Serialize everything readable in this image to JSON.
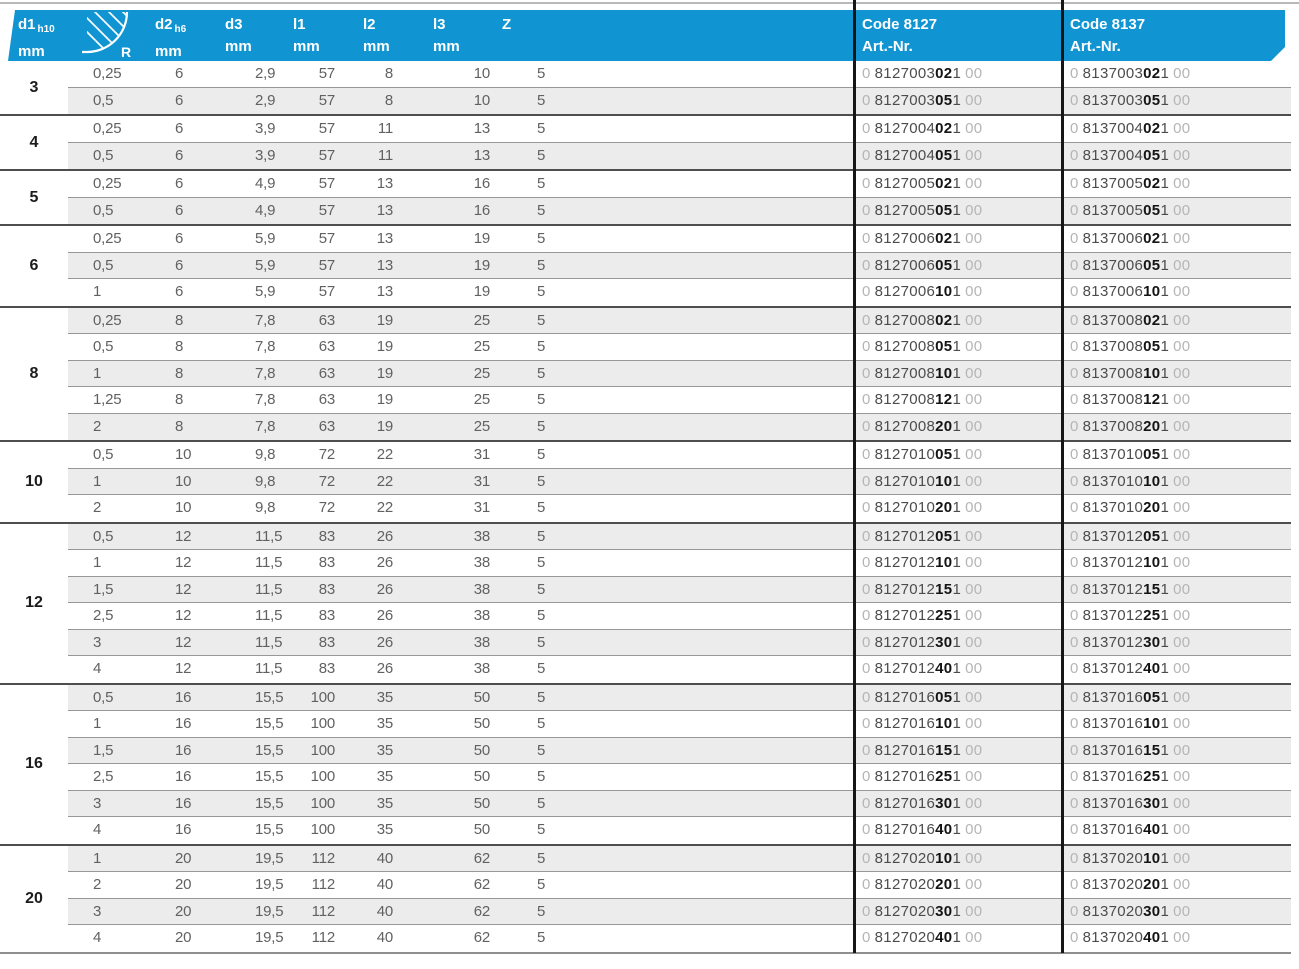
{
  "colors": {
    "header_blue": "#1195d2",
    "stripe_gray": "#ececec",
    "row_separator": "#979797",
    "group_separator": "#4e4e4e",
    "code_rule_black": "#161616",
    "data_text": "#616161",
    "code_light": "#b5b5b5",
    "code_body": "#4c4c4c",
    "code_bold": "#141414"
  },
  "header": {
    "columns": [
      {
        "label": "d1",
        "sub": "h10",
        "unit": "mm"
      },
      {
        "label": "R",
        "icon": "corner-radius-icon"
      },
      {
        "label": "d2",
        "sub": "h6",
        "unit": "mm"
      },
      {
        "label": "d3",
        "unit": "mm"
      },
      {
        "label": "l1",
        "unit": "mm"
      },
      {
        "label": "l2",
        "unit": "mm"
      },
      {
        "label": "l3",
        "unit": "mm"
      },
      {
        "label": "Z"
      }
    ],
    "code_columns": [
      {
        "title": "Code 8127",
        "subtitle": "Art.-Nr."
      },
      {
        "title": "Code 8137",
        "subtitle": "Art.-Nr."
      }
    ]
  },
  "groups": [
    {
      "d1": "3",
      "rows": [
        {
          "r": "0,25",
          "d2": "6",
          "d3": "2,9",
          "l1": "57",
          "l2": "8",
          "l3": "10",
          "z": "5",
          "codes": [
            {
              "lead": "0",
              "body": "8127003",
              "bold": "02",
              "tail": "1",
              "end": "00"
            },
            {
              "lead": "0",
              "body": "8137003",
              "bold": "02",
              "tail": "1",
              "end": "00"
            }
          ]
        },
        {
          "r": "0,5",
          "d2": "6",
          "d3": "2,9",
          "l1": "57",
          "l2": "8",
          "l3": "10",
          "z": "5",
          "codes": [
            {
              "lead": "0",
              "body": "8127003",
              "bold": "05",
              "tail": "1",
              "end": "00"
            },
            {
              "lead": "0",
              "body": "8137003",
              "bold": "05",
              "tail": "1",
              "end": "00"
            }
          ]
        }
      ]
    },
    {
      "d1": "4",
      "rows": [
        {
          "r": "0,25",
          "d2": "6",
          "d3": "3,9",
          "l1": "57",
          "l2": "11",
          "l3": "13",
          "z": "5",
          "codes": [
            {
              "lead": "0",
              "body": "8127004",
              "bold": "02",
              "tail": "1",
              "end": "00"
            },
            {
              "lead": "0",
              "body": "8137004",
              "bold": "02",
              "tail": "1",
              "end": "00"
            }
          ]
        },
        {
          "r": "0,5",
          "d2": "6",
          "d3": "3,9",
          "l1": "57",
          "l2": "11",
          "l3": "13",
          "z": "5",
          "codes": [
            {
              "lead": "0",
              "body": "8127004",
              "bold": "05",
              "tail": "1",
              "end": "00"
            },
            {
              "lead": "0",
              "body": "8137004",
              "bold": "05",
              "tail": "1",
              "end": "00"
            }
          ]
        }
      ]
    },
    {
      "d1": "5",
      "rows": [
        {
          "r": "0,25",
          "d2": "6",
          "d3": "4,9",
          "l1": "57",
          "l2": "13",
          "l3": "16",
          "z": "5",
          "codes": [
            {
              "lead": "0",
              "body": "8127005",
              "bold": "02",
              "tail": "1",
              "end": "00"
            },
            {
              "lead": "0",
              "body": "8137005",
              "bold": "02",
              "tail": "1",
              "end": "00"
            }
          ]
        },
        {
          "r": "0,5",
          "d2": "6",
          "d3": "4,9",
          "l1": "57",
          "l2": "13",
          "l3": "16",
          "z": "5",
          "codes": [
            {
              "lead": "0",
              "body": "8127005",
              "bold": "05",
              "tail": "1",
              "end": "00"
            },
            {
              "lead": "0",
              "body": "8137005",
              "bold": "05",
              "tail": "1",
              "end": "00"
            }
          ]
        }
      ]
    },
    {
      "d1": "6",
      "rows": [
        {
          "r": "0,25",
          "d2": "6",
          "d3": "5,9",
          "l1": "57",
          "l2": "13",
          "l3": "19",
          "z": "5",
          "codes": [
            {
              "lead": "0",
              "body": "8127006",
              "bold": "02",
              "tail": "1",
              "end": "00"
            },
            {
              "lead": "0",
              "body": "8137006",
              "bold": "02",
              "tail": "1",
              "end": "00"
            }
          ]
        },
        {
          "r": "0,5",
          "d2": "6",
          "d3": "5,9",
          "l1": "57",
          "l2": "13",
          "l3": "19",
          "z": "5",
          "codes": [
            {
              "lead": "0",
              "body": "8127006",
              "bold": "05",
              "tail": "1",
              "end": "00"
            },
            {
              "lead": "0",
              "body": "8137006",
              "bold": "05",
              "tail": "1",
              "end": "00"
            }
          ]
        },
        {
          "r": "1",
          "d2": "6",
          "d3": "5,9",
          "l1": "57",
          "l2": "13",
          "l3": "19",
          "z": "5",
          "codes": [
            {
              "lead": "0",
              "body": "8127006",
              "bold": "10",
              "tail": "1",
              "end": "00"
            },
            {
              "lead": "0",
              "body": "8137006",
              "bold": "10",
              "tail": "1",
              "end": "00"
            }
          ]
        }
      ]
    },
    {
      "d1": "8",
      "rows": [
        {
          "r": "0,25",
          "d2": "8",
          "d3": "7,8",
          "l1": "63",
          "l2": "19",
          "l3": "25",
          "z": "5",
          "codes": [
            {
              "lead": "0",
              "body": "8127008",
              "bold": "02",
              "tail": "1",
              "end": "00"
            },
            {
              "lead": "0",
              "body": "8137008",
              "bold": "02",
              "tail": "1",
              "end": "00"
            }
          ]
        },
        {
          "r": "0,5",
          "d2": "8",
          "d3": "7,8",
          "l1": "63",
          "l2": "19",
          "l3": "25",
          "z": "5",
          "codes": [
            {
              "lead": "0",
              "body": "8127008",
              "bold": "05",
              "tail": "1",
              "end": "00"
            },
            {
              "lead": "0",
              "body": "8137008",
              "bold": "05",
              "tail": "1",
              "end": "00"
            }
          ]
        },
        {
          "r": "1",
          "d2": "8",
          "d3": "7,8",
          "l1": "63",
          "l2": "19",
          "l3": "25",
          "z": "5",
          "codes": [
            {
              "lead": "0",
              "body": "8127008",
              "bold": "10",
              "tail": "1",
              "end": "00"
            },
            {
              "lead": "0",
              "body": "8137008",
              "bold": "10",
              "tail": "1",
              "end": "00"
            }
          ]
        },
        {
          "r": "1,25",
          "d2": "8",
          "d3": "7,8",
          "l1": "63",
          "l2": "19",
          "l3": "25",
          "z": "5",
          "codes": [
            {
              "lead": "0",
              "body": "8127008",
              "bold": "12",
              "tail": "1",
              "end": "00"
            },
            {
              "lead": "0",
              "body": "8137008",
              "bold": "12",
              "tail": "1",
              "end": "00"
            }
          ]
        },
        {
          "r": "2",
          "d2": "8",
          "d3": "7,8",
          "l1": "63",
          "l2": "19",
          "l3": "25",
          "z": "5",
          "codes": [
            {
              "lead": "0",
              "body": "8127008",
              "bold": "20",
              "tail": "1",
              "end": "00"
            },
            {
              "lead": "0",
              "body": "8137008",
              "bold": "20",
              "tail": "1",
              "end": "00"
            }
          ]
        }
      ]
    },
    {
      "d1": "10",
      "rows": [
        {
          "r": "0,5",
          "d2": "10",
          "d3": "9,8",
          "l1": "72",
          "l2": "22",
          "l3": "31",
          "z": "5",
          "codes": [
            {
              "lead": "0",
              "body": "8127010",
              "bold": "05",
              "tail": "1",
              "end": "00"
            },
            {
              "lead": "0",
              "body": "8137010",
              "bold": "05",
              "tail": "1",
              "end": "00"
            }
          ]
        },
        {
          "r": "1",
          "d2": "10",
          "d3": "9,8",
          "l1": "72",
          "l2": "22",
          "l3": "31",
          "z": "5",
          "codes": [
            {
              "lead": "0",
              "body": "8127010",
              "bold": "10",
              "tail": "1",
              "end": "00"
            },
            {
              "lead": "0",
              "body": "8137010",
              "bold": "10",
              "tail": "1",
              "end": "00"
            }
          ]
        },
        {
          "r": "2",
          "d2": "10",
          "d3": "9,8",
          "l1": "72",
          "l2": "22",
          "l3": "31",
          "z": "5",
          "codes": [
            {
              "lead": "0",
              "body": "8127010",
              "bold": "20",
              "tail": "1",
              "end": "00"
            },
            {
              "lead": "0",
              "body": "8137010",
              "bold": "20",
              "tail": "1",
              "end": "00"
            }
          ]
        }
      ]
    },
    {
      "d1": "12",
      "rows": [
        {
          "r": "0,5",
          "d2": "12",
          "d3": "11,5",
          "l1": "83",
          "l2": "26",
          "l3": "38",
          "z": "5",
          "codes": [
            {
              "lead": "0",
              "body": "8127012",
              "bold": "05",
              "tail": "1",
              "end": "00"
            },
            {
              "lead": "0",
              "body": "8137012",
              "bold": "05",
              "tail": "1",
              "end": "00"
            }
          ]
        },
        {
          "r": "1",
          "d2": "12",
          "d3": "11,5",
          "l1": "83",
          "l2": "26",
          "l3": "38",
          "z": "5",
          "codes": [
            {
              "lead": "0",
              "body": "8127012",
              "bold": "10",
              "tail": "1",
              "end": "00"
            },
            {
              "lead": "0",
              "body": "8137012",
              "bold": "10",
              "tail": "1",
              "end": "00"
            }
          ]
        },
        {
          "r": "1,5",
          "d2": "12",
          "d3": "11,5",
          "l1": "83",
          "l2": "26",
          "l3": "38",
          "z": "5",
          "codes": [
            {
              "lead": "0",
              "body": "8127012",
              "bold": "15",
              "tail": "1",
              "end": "00"
            },
            {
              "lead": "0",
              "body": "8137012",
              "bold": "15",
              "tail": "1",
              "end": "00"
            }
          ]
        },
        {
          "r": "2,5",
          "d2": "12",
          "d3": "11,5",
          "l1": "83",
          "l2": "26",
          "l3": "38",
          "z": "5",
          "codes": [
            {
              "lead": "0",
              "body": "8127012",
              "bold": "25",
              "tail": "1",
              "end": "00"
            },
            {
              "lead": "0",
              "body": "8137012",
              "bold": "25",
              "tail": "1",
              "end": "00"
            }
          ]
        },
        {
          "r": "3",
          "d2": "12",
          "d3": "11,5",
          "l1": "83",
          "l2": "26",
          "l3": "38",
          "z": "5",
          "codes": [
            {
              "lead": "0",
              "body": "8127012",
              "bold": "30",
              "tail": "1",
              "end": "00"
            },
            {
              "lead": "0",
              "body": "8137012",
              "bold": "30",
              "tail": "1",
              "end": "00"
            }
          ]
        },
        {
          "r": "4",
          "d2": "12",
          "d3": "11,5",
          "l1": "83",
          "l2": "26",
          "l3": "38",
          "z": "5",
          "codes": [
            {
              "lead": "0",
              "body": "8127012",
              "bold": "40",
              "tail": "1",
              "end": "00"
            },
            {
              "lead": "0",
              "body": "8137012",
              "bold": "40",
              "tail": "1",
              "end": "00"
            }
          ]
        }
      ]
    },
    {
      "d1": "16",
      "rows": [
        {
          "r": "0,5",
          "d2": "16",
          "d3": "15,5",
          "l1": "100",
          "l2": "35",
          "l3": "50",
          "z": "5",
          "codes": [
            {
              "lead": "0",
              "body": "8127016",
              "bold": "05",
              "tail": "1",
              "end": "00"
            },
            {
              "lead": "0",
              "body": "8137016",
              "bold": "05",
              "tail": "1",
              "end": "00"
            }
          ]
        },
        {
          "r": "1",
          "d2": "16",
          "d3": "15,5",
          "l1": "100",
          "l2": "35",
          "l3": "50",
          "z": "5",
          "codes": [
            {
              "lead": "0",
              "body": "8127016",
              "bold": "10",
              "tail": "1",
              "end": "00"
            },
            {
              "lead": "0",
              "body": "8137016",
              "bold": "10",
              "tail": "1",
              "end": "00"
            }
          ]
        },
        {
          "r": "1,5",
          "d2": "16",
          "d3": "15,5",
          "l1": "100",
          "l2": "35",
          "l3": "50",
          "z": "5",
          "codes": [
            {
              "lead": "0",
              "body": "8127016",
              "bold": "15",
              "tail": "1",
              "end": "00"
            },
            {
              "lead": "0",
              "body": "8137016",
              "bold": "15",
              "tail": "1",
              "end": "00"
            }
          ]
        },
        {
          "r": "2,5",
          "d2": "16",
          "d3": "15,5",
          "l1": "100",
          "l2": "35",
          "l3": "50",
          "z": "5",
          "codes": [
            {
              "lead": "0",
              "body": "8127016",
              "bold": "25",
              "tail": "1",
              "end": "00"
            },
            {
              "lead": "0",
              "body": "8137016",
              "bold": "25",
              "tail": "1",
              "end": "00"
            }
          ]
        },
        {
          "r": "3",
          "d2": "16",
          "d3": "15,5",
          "l1": "100",
          "l2": "35",
          "l3": "50",
          "z": "5",
          "codes": [
            {
              "lead": "0",
              "body": "8127016",
              "bold": "30",
              "tail": "1",
              "end": "00"
            },
            {
              "lead": "0",
              "body": "8137016",
              "bold": "30",
              "tail": "1",
              "end": "00"
            }
          ]
        },
        {
          "r": "4",
          "d2": "16",
          "d3": "15,5",
          "l1": "100",
          "l2": "35",
          "l3": "50",
          "z": "5",
          "codes": [
            {
              "lead": "0",
              "body": "8127016",
              "bold": "40",
              "tail": "1",
              "end": "00"
            },
            {
              "lead": "0",
              "body": "8137016",
              "bold": "40",
              "tail": "1",
              "end": "00"
            }
          ]
        }
      ]
    },
    {
      "d1": "20",
      "rows": [
        {
          "r": "1",
          "d2": "20",
          "d3": "19,5",
          "l1": "112",
          "l2": "40",
          "l3": "62",
          "z": "5",
          "codes": [
            {
              "lead": "0",
              "body": "8127020",
              "bold": "10",
              "tail": "1",
              "end": "00"
            },
            {
              "lead": "0",
              "body": "8137020",
              "bold": "10",
              "tail": "1",
              "end": "00"
            }
          ]
        },
        {
          "r": "2",
          "d2": "20",
          "d3": "19,5",
          "l1": "112",
          "l2": "40",
          "l3": "62",
          "z": "5",
          "codes": [
            {
              "lead": "0",
              "body": "8127020",
              "bold": "20",
              "tail": "1",
              "end": "00"
            },
            {
              "lead": "0",
              "body": "8137020",
              "bold": "20",
              "tail": "1",
              "end": "00"
            }
          ]
        },
        {
          "r": "3",
          "d2": "20",
          "d3": "19,5",
          "l1": "112",
          "l2": "40",
          "l3": "62",
          "z": "5",
          "codes": [
            {
              "lead": "0",
              "body": "8127020",
              "bold": "30",
              "tail": "1",
              "end": "00"
            },
            {
              "lead": "0",
              "body": "8137020",
              "bold": "30",
              "tail": "1",
              "end": "00"
            }
          ]
        },
        {
          "r": "4",
          "d2": "20",
          "d3": "19,5",
          "l1": "112",
          "l2": "40",
          "l3": "62",
          "z": "5",
          "codes": [
            {
              "lead": "0",
              "body": "8127020",
              "bold": "40",
              "tail": "1",
              "end": "00"
            },
            {
              "lead": "0",
              "body": "8137020",
              "bold": "40",
              "tail": "1",
              "end": "00"
            }
          ]
        }
      ]
    }
  ]
}
